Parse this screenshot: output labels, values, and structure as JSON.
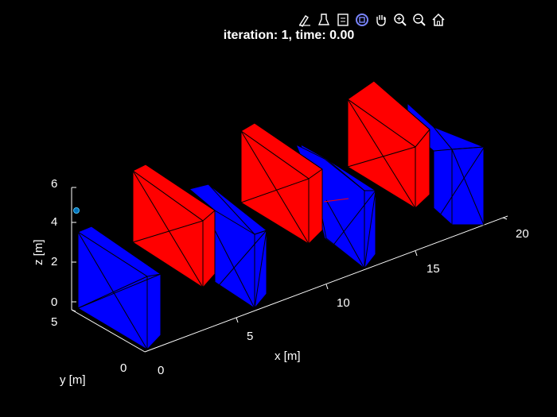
{
  "figure": {
    "title": "iteration: 1, time: 0.00",
    "background": "#000000"
  },
  "toolbar": {
    "items": [
      {
        "icon": "edit-plot-icon"
      },
      {
        "icon": "data-tips-icon"
      },
      {
        "icon": "legend-icon"
      },
      {
        "icon": "rotate-3d-icon",
        "active": true
      },
      {
        "icon": "pan-hand-icon"
      },
      {
        "icon": "zoom-in-icon"
      },
      {
        "icon": "zoom-out-icon"
      },
      {
        "icon": "home-icon"
      }
    ]
  },
  "axes": {
    "xlabel": "x [m]",
    "ylabel": "y [m]",
    "zlabel": "z [m]",
    "x_ticks": [
      "0",
      "5",
      "10",
      "15",
      "20"
    ],
    "y_ticks": [
      "0",
      "5"
    ],
    "z_ticks": [
      "0",
      "2",
      "4",
      "6"
    ],
    "xlim": [
      0,
      20
    ],
    "ylim": [
      0,
      5
    ],
    "zlim": [
      0,
      6
    ],
    "colors": {
      "blue": "#0000FF",
      "red": "#FF0000",
      "edges": "#000000",
      "axis": "#FFFFFF",
      "marker": "#0072BD"
    }
  },
  "scene": {
    "blocks": [
      {
        "color": "blue",
        "index": 1
      },
      {
        "color": "red",
        "index": 2
      },
      {
        "color": "blue",
        "index": 3
      },
      {
        "color": "red",
        "index": 4
      },
      {
        "color": "blue",
        "index": 5
      },
      {
        "color": "red",
        "index": 6
      },
      {
        "color": "blue",
        "index": 7
      }
    ]
  }
}
